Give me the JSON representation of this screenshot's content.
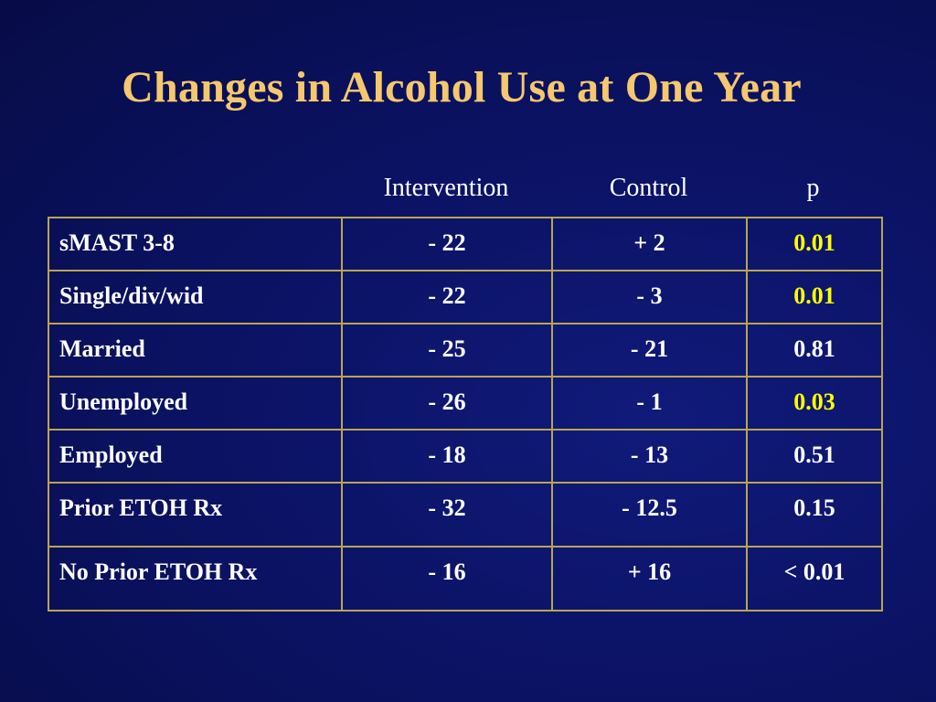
{
  "slide": {
    "title": "Changes in Alcohol Use at One Year"
  },
  "table": {
    "columns": [
      "Intervention",
      "Control",
      "p"
    ],
    "rows": [
      {
        "label": "sMAST 3-8",
        "intervention": "- 22",
        "control": "+ 2",
        "p": "0.01",
        "highlight": true
      },
      {
        "label": "Single/div/wid",
        "intervention": "- 22",
        "control": "- 3",
        "p": "0.01",
        "highlight": true
      },
      {
        "label": "Married",
        "intervention": "- 25",
        "control": "- 21",
        "p": "0.81",
        "highlight": false
      },
      {
        "label": "Unemployed",
        "intervention": "- 26",
        "control": "- 1",
        "p": "0.03",
        "highlight": true
      },
      {
        "label": "Employed",
        "intervention": "- 18",
        "control": "- 13",
        "p": "0.51",
        "highlight": false
      },
      {
        "label": "Prior ETOH Rx",
        "intervention": "- 32",
        "control": "- 12.5",
        "p": "0.15",
        "highlight": false
      },
      {
        "label": "No Prior ETOH Rx",
        "intervention": "- 16",
        "control": "+ 16",
        "p": "< 0.01",
        "highlight": false
      }
    ]
  },
  "colors": {
    "title": "#f5c86e",
    "text": "#ffffff",
    "highlight_p": "#ffff00",
    "grid": "#b9a552",
    "background": "#0b1263"
  }
}
